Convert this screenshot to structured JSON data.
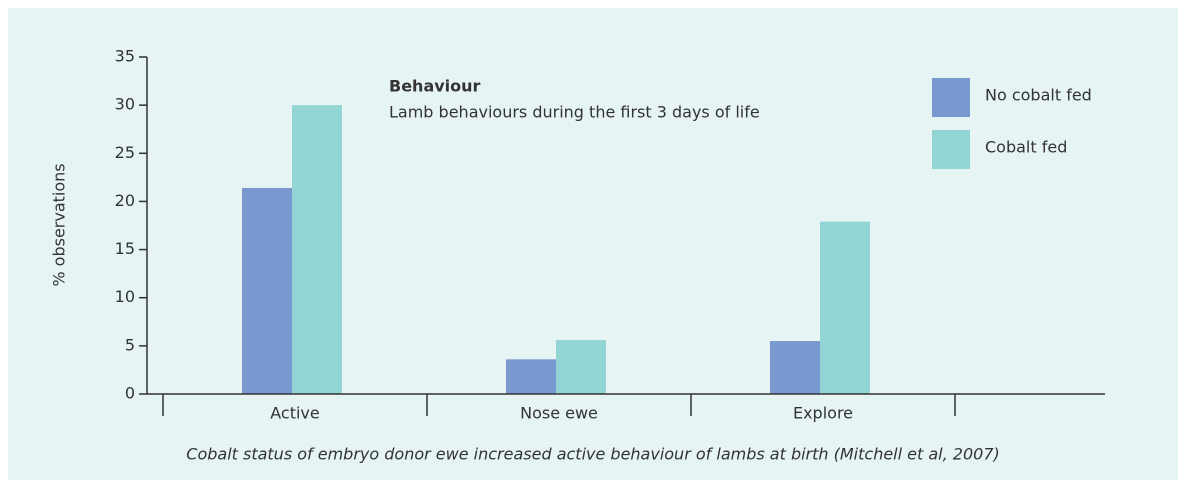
{
  "chart_data": {
    "type": "bar",
    "title": "Behaviour",
    "subtitle": "Lamb behaviours during the first 3 days of life",
    "y_label": "% observations",
    "caption": "Cobalt status of embryo donor ewe increased active behaviour of lambs at birth (Mitchell et al, 2007)",
    "categories": [
      "Active",
      "Nose ewe",
      "Explore"
    ],
    "series": [
      {
        "name": "No cobalt fed",
        "color": "#7898cf",
        "values": [
          21.4,
          3.6,
          5.5
        ]
      },
      {
        "name": "Cobalt fed",
        "color": "#93d5d5",
        "values": [
          30,
          5.6,
          17.9
        ]
      }
    ],
    "ylim": [
      0,
      35
    ],
    "yticks": [
      0,
      5,
      10,
      15,
      20,
      25,
      30,
      35
    ],
    "legend": "top-right"
  }
}
